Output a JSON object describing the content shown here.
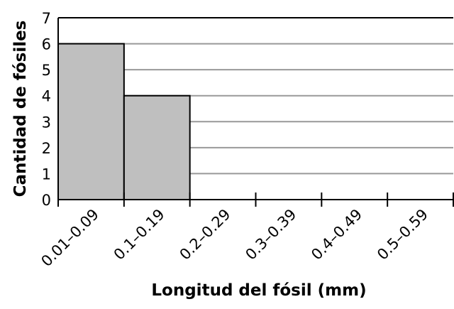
{
  "chart_data": {
    "type": "bar",
    "x_label": "Longitud del fósil (mm)",
    "y_label": "Cantidad de fósiles",
    "categories": [
      "0.01–0.09",
      "0.1–0.19",
      "0.2–0.29",
      "0.3–0.39",
      "0.4–0.49",
      "0.5–0.59"
    ],
    "values": [
      6,
      4,
      0,
      0,
      0,
      0
    ],
    "color": "#bfbfbf",
    "ylim": [
      0,
      7
    ],
    "yticks": [
      0,
      1,
      2,
      3,
      4,
      5,
      6,
      7
    ],
    "grid": true
  }
}
